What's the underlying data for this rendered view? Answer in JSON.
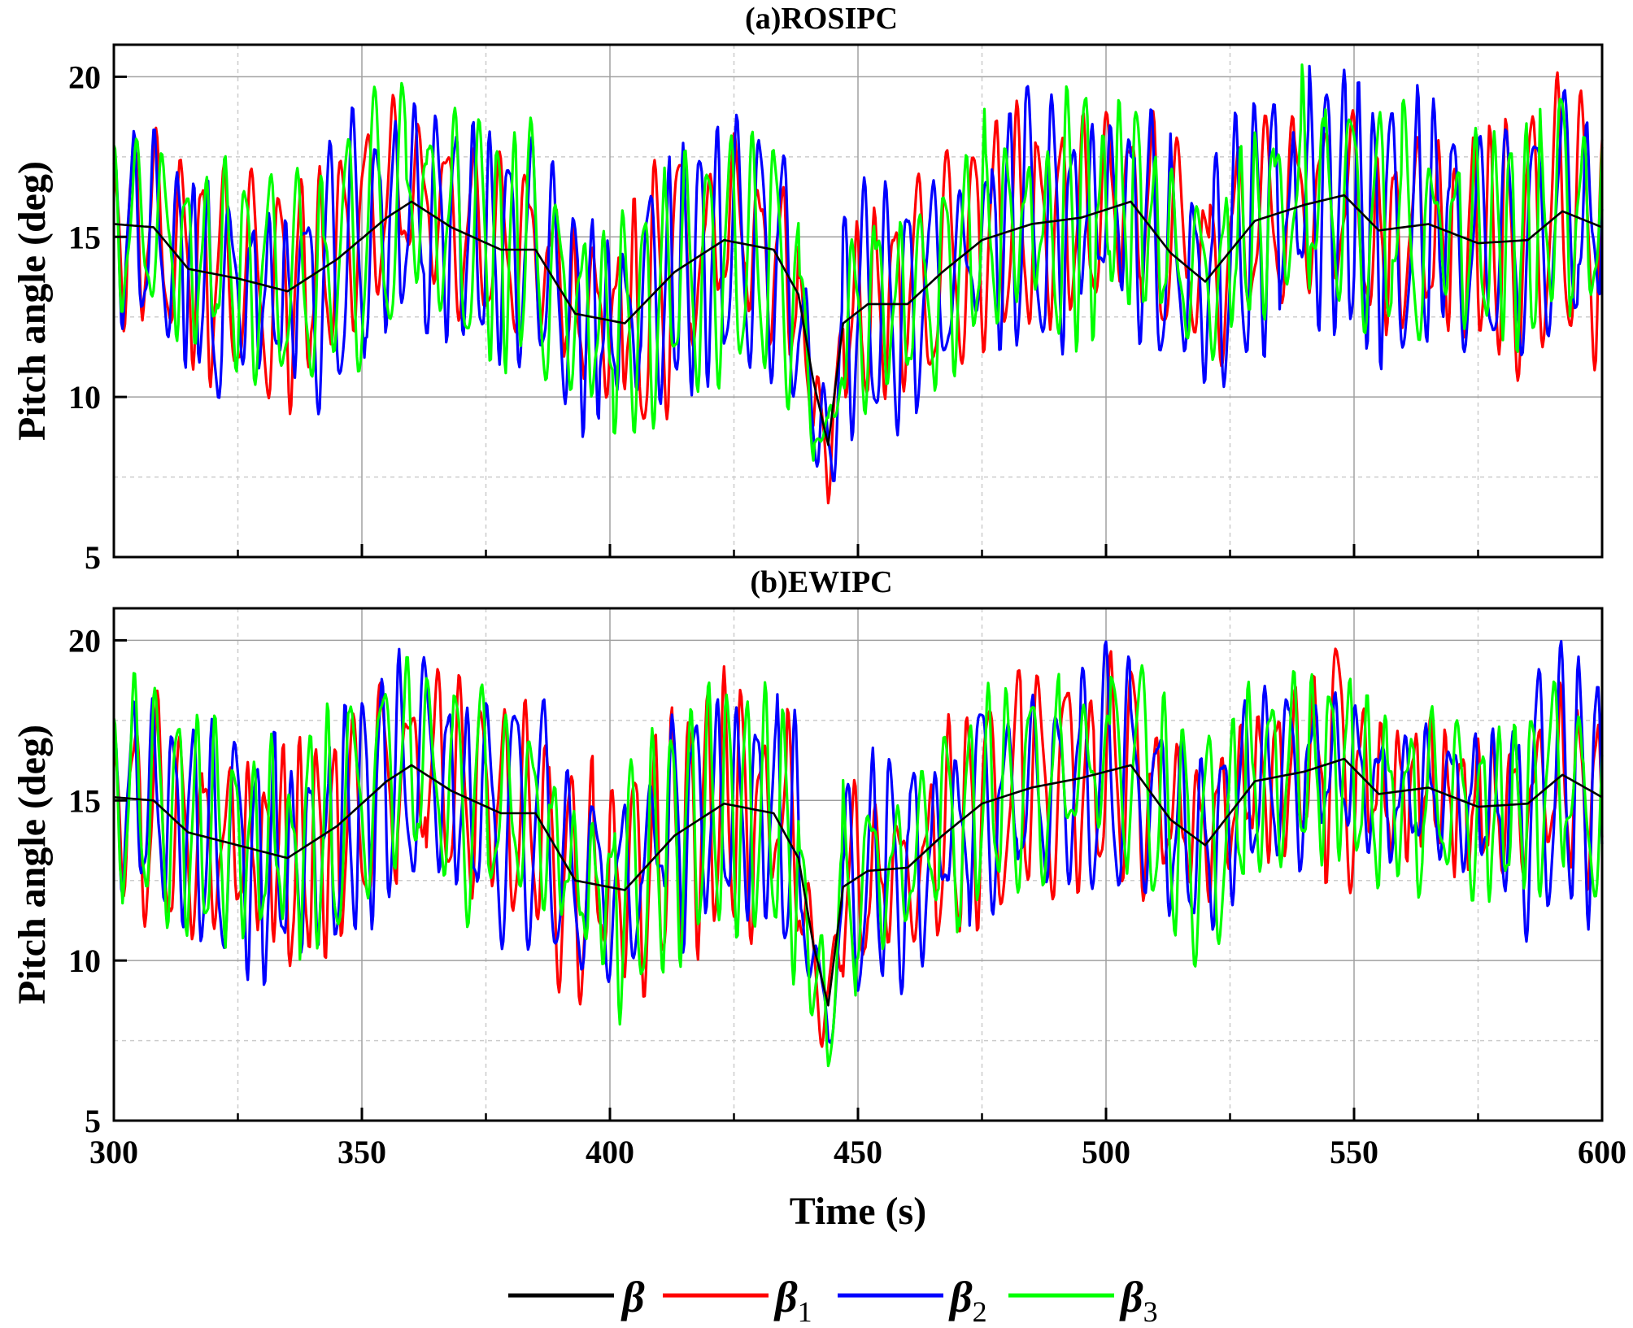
{
  "chart_data": [
    {
      "type": "line",
      "title": "(a)ROSIPC",
      "xlabel": "Time (s)",
      "ylabel": "Pitch angle (deg)",
      "xlim": [
        300,
        600
      ],
      "ylim": [
        5,
        21
      ],
      "xticks": [
        300,
        350,
        400,
        450,
        500,
        550,
        600
      ],
      "xtick_labels": [
        "300",
        "350",
        "400",
        "450",
        "500",
        "550",
        "600"
      ],
      "yticks": [
        5,
        10,
        15,
        20
      ],
      "ytick_labels": [
        "5",
        "10",
        "15",
        "20"
      ],
      "grid": true,
      "mean_signal": {
        "name": "β",
        "x": [
          300,
          308,
          315,
          325,
          335,
          345,
          355,
          360,
          368,
          378,
          385,
          393,
          403,
          413,
          423,
          433,
          438,
          441,
          444,
          447,
          452,
          460,
          467,
          475,
          485,
          495,
          505,
          513,
          520,
          530,
          540,
          548,
          555,
          565,
          575,
          585,
          592,
          600
        ],
        "y": [
          15.4,
          15.3,
          14.0,
          13.7,
          13.3,
          14.3,
          15.6,
          16.1,
          15.3,
          14.6,
          14.6,
          12.6,
          12.3,
          13.9,
          14.9,
          14.6,
          13.2,
          10.5,
          8.5,
          12.3,
          12.9,
          12.9,
          13.9,
          14.9,
          15.4,
          15.6,
          16.1,
          14.5,
          13.6,
          15.5,
          16.0,
          16.3,
          15.2,
          15.4,
          14.8,
          14.9,
          15.8,
          15.3
        ]
      },
      "series": [
        {
          "name": "β1",
          "color": "#ff0000",
          "seed": 11,
          "amp": 2.6,
          "period": 4.6
        },
        {
          "name": "β2",
          "color": "#0000ff",
          "seed": 23,
          "amp": 2.7,
          "period": 4.1
        },
        {
          "name": "β3",
          "color": "#00ff00",
          "seed": 37,
          "amp": 2.6,
          "period": 4.3
        }
      ],
      "data_labels": []
    },
    {
      "type": "line",
      "title": "(b)EWIPC",
      "xlabel": "Time (s)",
      "ylabel": "Pitch angle (deg)",
      "xlim": [
        300,
        600
      ],
      "ylim": [
        5,
        21
      ],
      "xticks": [
        300,
        350,
        400,
        450,
        500,
        550,
        600
      ],
      "xtick_labels": [
        "300",
        "350",
        "400",
        "450",
        "500",
        "550",
        "600"
      ],
      "yticks": [
        5,
        10,
        15,
        20
      ],
      "ytick_labels": [
        "5",
        "10",
        "15",
        "20"
      ],
      "grid": true,
      "mean_signal": {
        "name": "β",
        "x": [
          300,
          308,
          315,
          325,
          335,
          345,
          355,
          360,
          368,
          378,
          385,
          393,
          403,
          413,
          423,
          433,
          438,
          441,
          444,
          447,
          452,
          460,
          467,
          475,
          485,
          495,
          505,
          513,
          520,
          530,
          540,
          548,
          555,
          565,
          575,
          585,
          592,
          600
        ],
        "y": [
          15.1,
          15.0,
          14.0,
          13.6,
          13.2,
          14.2,
          15.6,
          16.1,
          15.3,
          14.6,
          14.6,
          12.5,
          12.2,
          13.9,
          14.9,
          14.6,
          13.2,
          10.5,
          8.6,
          12.3,
          12.8,
          12.9,
          13.9,
          14.9,
          15.4,
          15.7,
          16.1,
          14.4,
          13.6,
          15.6,
          15.9,
          16.3,
          15.2,
          15.4,
          14.8,
          14.9,
          15.8,
          15.1
        ]
      },
      "series": [
        {
          "name": "β1",
          "color": "#ff0000",
          "seed": 51,
          "amp": 2.5,
          "period": 4.5
        },
        {
          "name": "β2",
          "color": "#0000ff",
          "seed": 63,
          "amp": 2.6,
          "period": 4.2
        },
        {
          "name": "β3",
          "color": "#00ff00",
          "seed": 77,
          "amp": 2.5,
          "period": 4.4
        }
      ],
      "data_labels": []
    }
  ],
  "legend": {
    "placement": "bottom-center",
    "entries": [
      {
        "symbol": "β",
        "sub": "",
        "color": "#000000"
      },
      {
        "symbol": "β",
        "sub": "1",
        "color": "#ff0000"
      },
      {
        "symbol": "β",
        "sub": "2",
        "color": "#0000ff"
      },
      {
        "symbol": "β",
        "sub": "3",
        "color": "#00ff00"
      }
    ]
  },
  "shared_xlabel": "Time (s)",
  "colors": {
    "axis": "#000000",
    "grid": "#a0a0a0",
    "minor_grid": "#cccccc",
    "mean": "#000000"
  }
}
